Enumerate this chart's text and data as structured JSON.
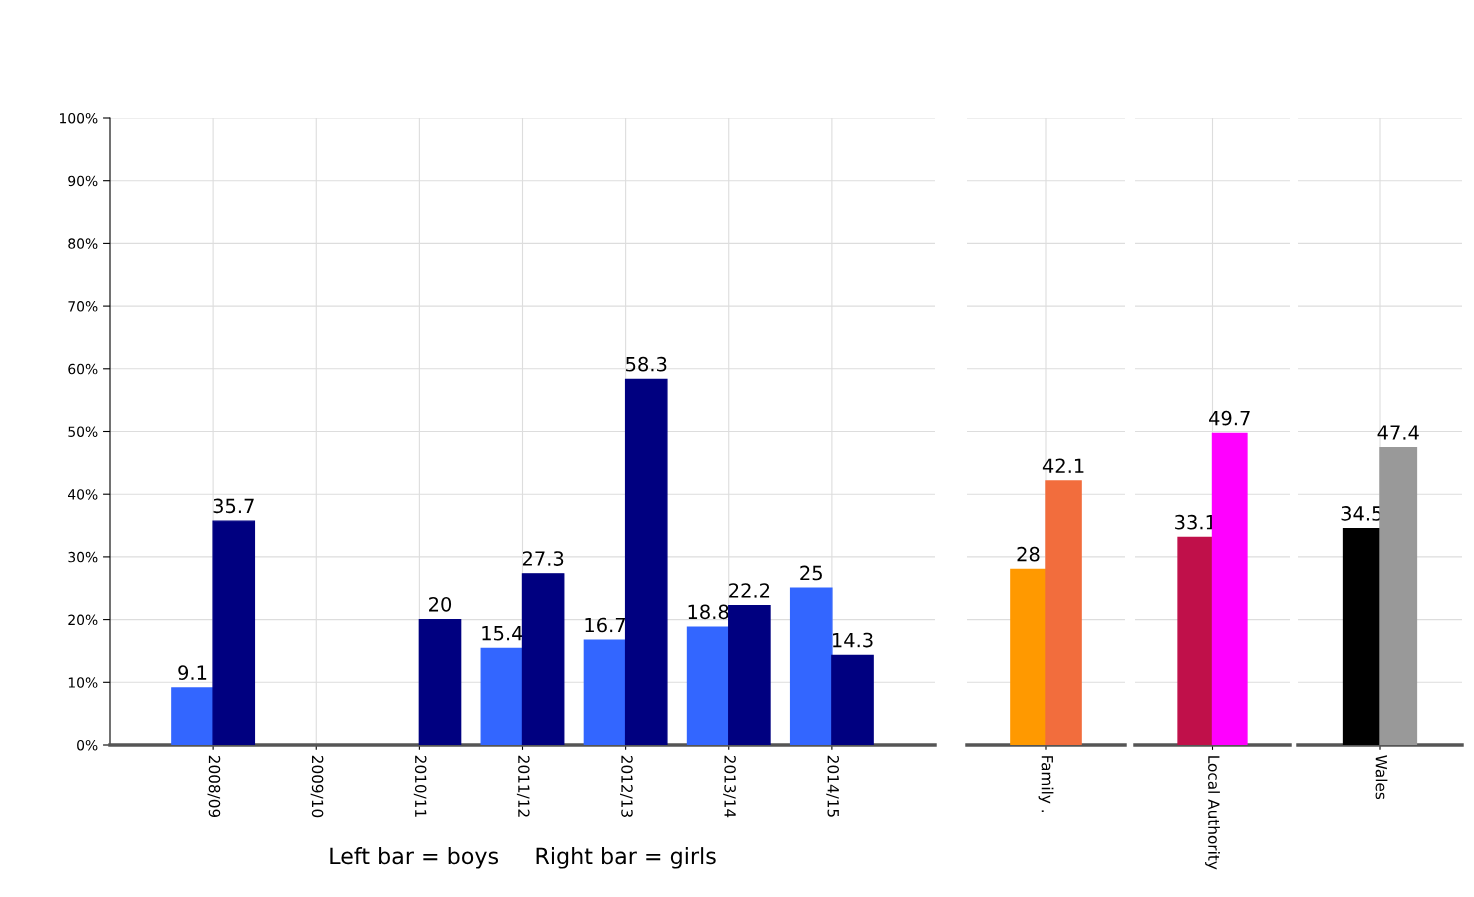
{
  "chart_data": [
    {
      "type": "bar",
      "categories": [
        "2008/09",
        "2009/10",
        "2010/11",
        "2011/12",
        "2012/13",
        "2013/14",
        "2014/15"
      ],
      "series": [
        {
          "color": "#3366ff",
          "values": [
            9.1,
            null,
            null,
            15.4,
            16.7,
            18.8,
            25
          ]
        },
        {
          "color": "#000080",
          "values": [
            35.7,
            null,
            20,
            27.3,
            58.3,
            22.2,
            14.3
          ]
        }
      ],
      "ylim": [
        0,
        100
      ],
      "yticks": [
        {
          "value": 0,
          "label": "0%"
        },
        {
          "value": 10,
          "label": "10%"
        },
        {
          "value": 20,
          "label": "20%"
        },
        {
          "value": 30,
          "label": "30%"
        },
        {
          "value": 40,
          "label": "40%"
        },
        {
          "value": 50,
          "label": "50%"
        },
        {
          "value": 60,
          "label": "60%"
        },
        {
          "value": 70,
          "label": "70%"
        },
        {
          "value": 80,
          "label": "80%"
        },
        {
          "value": 90,
          "label": "90%"
        },
        {
          "value": 100,
          "label": "100%"
        }
      ],
      "grid": true,
      "data_labels": true,
      "annotations": [
        "Left bar = boys     Right bar = girls"
      ]
    },
    {
      "type": "bar",
      "categories": [
        "Family ."
      ],
      "series": [
        {
          "color": "#ff9900",
          "values": [
            28
          ]
        },
        {
          "color": "#f26d3d",
          "values": [
            42.1
          ]
        }
      ],
      "ylim": [
        0,
        100
      ],
      "yticks": [
        0,
        10,
        20,
        30,
        40,
        50,
        60,
        70,
        80,
        90,
        100
      ],
      "tick_labels": "x",
      "grid": true,
      "data_labels": true
    },
    {
      "type": "bar",
      "categories": [
        "Local Authority"
      ],
      "series": [
        {
          "color": "#c0104a",
          "values": [
            33.1
          ]
        },
        {
          "color": "#ff00ff",
          "values": [
            49.7
          ]
        }
      ],
      "ylim": [
        0,
        100
      ],
      "yticks": [
        0,
        10,
        20,
        30,
        40,
        50,
        60,
        70,
        80,
        90,
        100
      ],
      "tick_labels": "x",
      "grid": true,
      "data_labels": true
    },
    {
      "type": "bar",
      "categories": [
        "Wales"
      ],
      "series": [
        {
          "color": "#000000",
          "values": [
            34.5
          ]
        },
        {
          "color": "#999999",
          "values": [
            47.4
          ]
        }
      ],
      "ylim": [
        0,
        100
      ],
      "yticks": [
        0,
        10,
        20,
        30,
        40,
        50,
        60,
        70,
        80,
        90,
        100
      ],
      "tick_labels": "x",
      "grid": true,
      "data_labels": true
    }
  ]
}
